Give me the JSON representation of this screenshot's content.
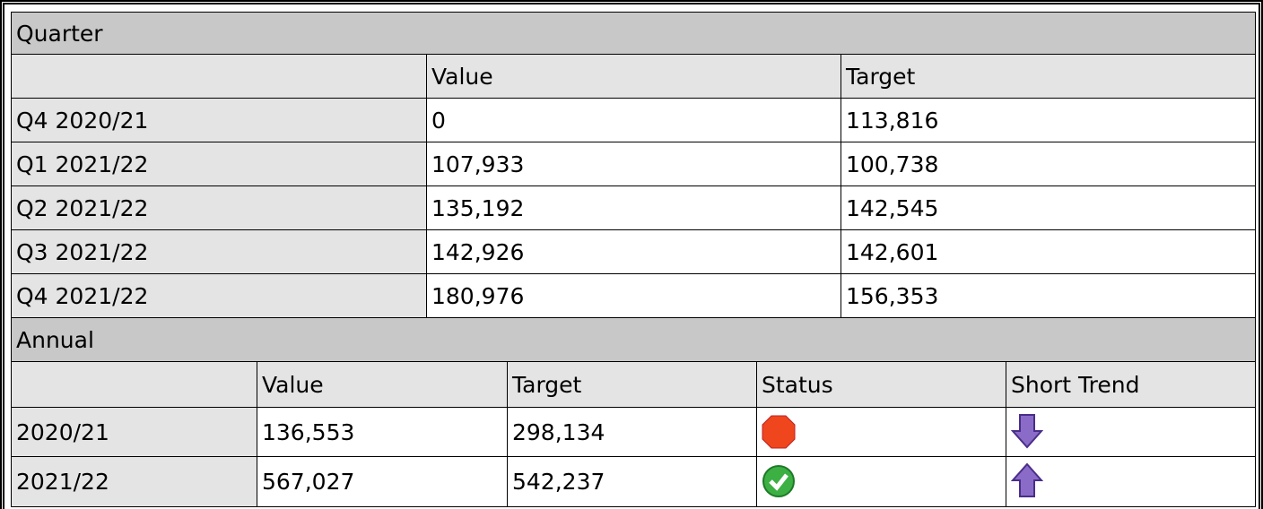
{
  "quarter": {
    "title": "Quarter",
    "columns": [
      "Value",
      "Target"
    ],
    "rows": [
      {
        "label": "Q4 2020/21",
        "values": [
          "0",
          "113,816"
        ]
      },
      {
        "label": "Q1 2021/22",
        "values": [
          "107,933",
          "100,738"
        ]
      },
      {
        "label": "Q2 2021/22",
        "values": [
          "135,192",
          "142,545"
        ]
      },
      {
        "label": "Q3 2021/22",
        "values": [
          "142,926",
          "142,601"
        ]
      },
      {
        "label": "Q4 2021/22",
        "values": [
          "180,976",
          "156,353"
        ]
      }
    ]
  },
  "annual": {
    "title": "Annual",
    "columns": [
      "Value",
      "Target",
      "Status",
      "Short Trend"
    ],
    "rows": [
      {
        "label": "2020/21",
        "values": [
          "136,553",
          "298,134"
        ]
      },
      {
        "label": "2021/22",
        "values": [
          "567,027",
          "542,237"
        ]
      }
    ]
  }
}
